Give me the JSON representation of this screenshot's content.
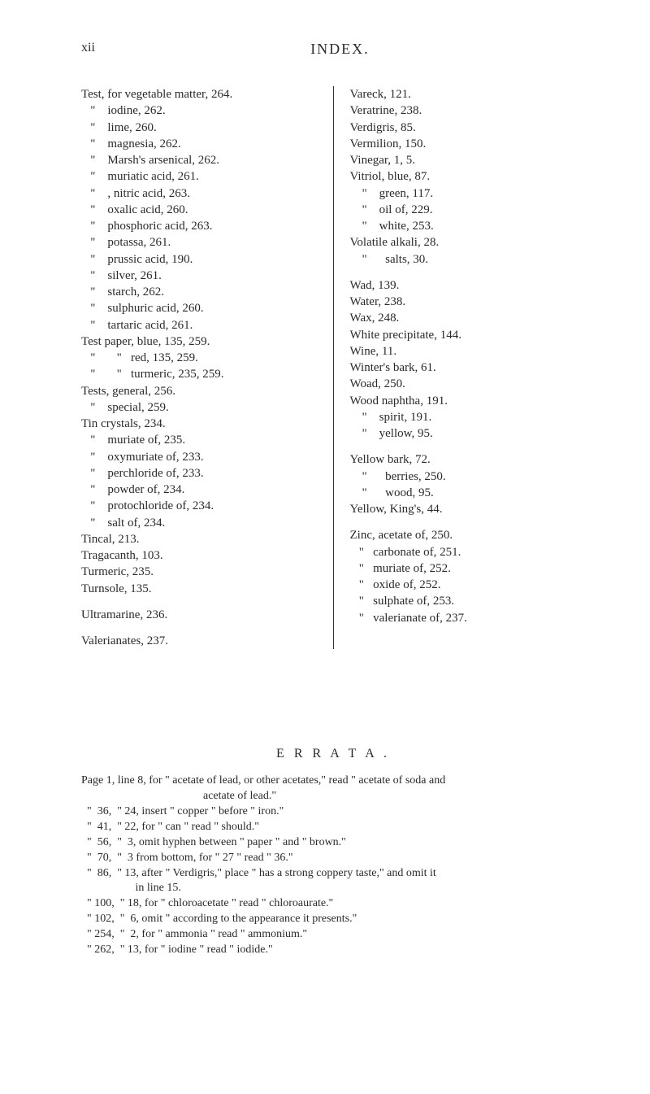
{
  "header": {
    "page_number": "xii",
    "title": "INDEX."
  },
  "left_column": [
    "Test, for vegetable matter, 264.",
    "   \"    iodine, 262.",
    "   \"    lime, 260.",
    "   \"    magnesia, 262.",
    "   \"    Marsh's arsenical, 262.",
    "   \"    muriatic acid, 261.",
    "   \"    , nitric acid, 263.",
    "   \"    oxalic acid, 260.",
    "   \"    phosphoric acid, 263.",
    "   \"    potassa, 261.",
    "   \"    prussic acid, 190.",
    "   \"    silver, 261.",
    "   \"    starch, 262.",
    "   \"    sulphuric acid, 260.",
    "   \"    tartaric acid, 261.",
    "Test paper, blue, 135, 259.",
    "   \"       \"   red, 135, 259.",
    "   \"       \"   turmeric, 235, 259.",
    "Tests, general, 256.",
    "   \"    special, 259.",
    "Tin crystals, 234.",
    "   \"    muriate of, 235.",
    "   \"    oxymuriate of, 233.",
    "   \"    perchloride of, 233.",
    "   \"    powder of, 234.",
    "   \"    protochloride of, 234.",
    "   \"    salt of, 234.",
    "Tincal, 213.",
    "Tragacanth, 103.",
    "Turmeric, 235.",
    "Turnsole, 135.",
    "",
    "Ultramarine, 236.",
    "",
    "Valerianates, 237."
  ],
  "right_column": [
    "Vareck, 121.",
    "Veratrine, 238.",
    "Verdigris, 85.",
    "Vermilion, 150.",
    "Vinegar, 1, 5.",
    "Vitriol, blue, 87.",
    "    \"    green, 117.",
    "    \"    oil of, 229.",
    "    \"    white, 253.",
    "Volatile alkali, 28.",
    "    \"      salts, 30.",
    "",
    "Wad, 139.",
    "Water, 238.",
    "Wax, 248.",
    "White precipitate, 144.",
    "Wine, 11.",
    "Winter's bark, 61.",
    "Woad, 250.",
    "Wood naphtha, 191.",
    "    \"    spirit, 191.",
    "    \"    yellow, 95.",
    "",
    "Yellow bark, 72.",
    "    \"      berries, 250.",
    "    \"      wood, 95.",
    "Yellow, King's, 44.",
    "",
    "Zinc, acetate of, 250.",
    "   \"   carbonate of, 251.",
    "   \"   muriate of, 252.",
    "   \"   oxide of, 252.",
    "   \"   sulphate of, 253.",
    "   \"   valerianate of, 237."
  ],
  "errata": {
    "title": "E R R A T A .",
    "intro": "Page 1, line 8, for \" acetate of lead, or other acetates,\" read \" acetate of soda and",
    "intro_cont": "acetate of lead.\"",
    "lines": [
      "\"  36,  \" 24, insert \" copper \" before \" iron.\"",
      "\"  41,  \" 22, for \" can \" read \" should.\"",
      "\"  56,  \"  3, omit hyphen between \" paper \" and \" brown.\"",
      "\"  70,  \"  3 from bottom, for \" 27 \" read \" 36.\"",
      "\"  86,  \" 13, after \" Verdigris,\" place \" has a strong coppery taste,\" and omit it",
      "                 in line 15.",
      "\" 100,  \" 18, for \" chloroacetate \" read \" chloroaurate.\"",
      "\" 102,  \"  6, omit \" according to the appearance it presents.\"",
      "\" 254,  \"  2, for \" ammonia \" read \" ammonium.\"",
      "\" 262,  \" 13, for \" iodine \" read \" iodide.\""
    ]
  }
}
